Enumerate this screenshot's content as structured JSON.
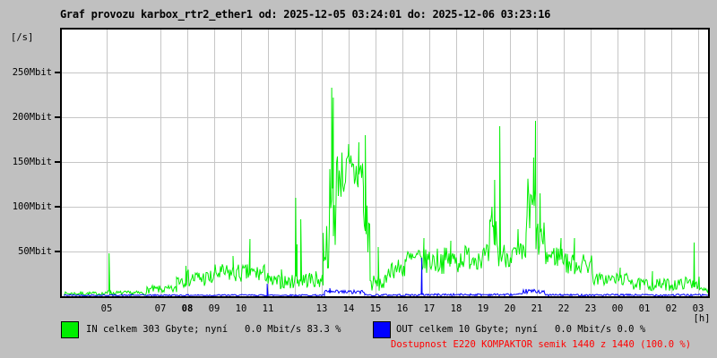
{
  "title": "Graf provozu karbox_rtr2_ether1 od: 2025-12-05 03:24:01 do: 2025-12-06 03:23:16",
  "colors": {
    "in_series": "#00ee00",
    "out_series": "#0000ff",
    "availability_text": "#ff0000",
    "background": "#c0c0c0",
    "plot_background": "#ffffff",
    "grid": "#c6c6c6",
    "axis": "#000000"
  },
  "y_axis": {
    "unit": "[/s]",
    "ticks": [
      {
        "v": 250,
        "label": "250Mbit"
      },
      {
        "v": 200,
        "label": "200Mbit"
      },
      {
        "v": 150,
        "label": "150Mbit"
      },
      {
        "v": 100,
        "label": "100Mbit"
      },
      {
        "v": 50,
        "label": "50Mbit"
      }
    ]
  },
  "x_axis": {
    "unit": "[h]",
    "ticks": [
      {
        "h": 5,
        "label": "05"
      },
      {
        "h": 7,
        "label": "07"
      },
      {
        "h": 8,
        "label": "08",
        "bold": true
      },
      {
        "h": 9,
        "label": "09"
      },
      {
        "h": 10,
        "label": "10"
      },
      {
        "h": 11,
        "label": "11"
      },
      {
        "h": 12,
        "label": ""
      },
      {
        "h": 13,
        "label": "13"
      },
      {
        "h": 14,
        "label": "14"
      },
      {
        "h": 15,
        "label": "15"
      },
      {
        "h": 16,
        "label": "16"
      },
      {
        "h": 17,
        "label": "17"
      },
      {
        "h": 18,
        "label": "18"
      },
      {
        "h": 19,
        "label": "19"
      },
      {
        "h": 20,
        "label": "20"
      },
      {
        "h": 21,
        "label": "21"
      },
      {
        "h": 22,
        "label": "22"
      },
      {
        "h": 23,
        "label": "23"
      },
      {
        "h": 24,
        "label": "00"
      },
      {
        "h": 25,
        "label": "01"
      },
      {
        "h": 26,
        "label": "02"
      },
      {
        "h": 27,
        "label": "03"
      }
    ]
  },
  "legend": {
    "in_label": "IN celkem 303 Gbyte; nyní   0.0 Mbit/s 83.3 %",
    "out_label": "OUT celkem 10 Gbyte; nyní   0.0 Mbit/s 0.0 %"
  },
  "availability": "Dostupnost E220 KOMPAKTOR semik 1440 z 1440 (100.0 %)",
  "chart_data": {
    "type": "line",
    "title": "Graf provozu karbox_rtr2_ether1 od: 2025-12-05 03:24:01 do: 2025-12-06 03:23:16",
    "xlabel": "[h]",
    "ylabel": "[/s] (Mbit/s)",
    "x_range_hours": [
      3.4,
      27.39
    ],
    "ylim": [
      0,
      298
    ],
    "grid": true,
    "legend_position": "bottom",
    "note": "24h traffic graph 03:24 day1 to 03:23 day2; series described as noisy bands [startHour,endHour,minMbit,maxMbit] plus discrete spikes [hour,Mbit]",
    "series": [
      {
        "name": "IN",
        "color": "#00ee00",
        "bands": [
          [
            3.4,
            5.05,
            1,
            5
          ],
          [
            5.05,
            5.12,
            4,
            10
          ],
          [
            5.12,
            6.5,
            1,
            6
          ],
          [
            6.5,
            7.6,
            3,
            12
          ],
          [
            7.6,
            9.0,
            10,
            30
          ],
          [
            9.0,
            11.0,
            15,
            36
          ],
          [
            11.0,
            11.95,
            8,
            24
          ],
          [
            11.95,
            13.05,
            9,
            28
          ],
          [
            13.05,
            13.3,
            30,
            85
          ],
          [
            13.3,
            13.55,
            50,
            150
          ],
          [
            13.55,
            14.55,
            108,
            165
          ],
          [
            14.55,
            14.8,
            40,
            115
          ],
          [
            14.8,
            15.45,
            5,
            24
          ],
          [
            15.45,
            16.1,
            20,
            42
          ],
          [
            16.1,
            18.2,
            25,
            55
          ],
          [
            18.2,
            19.25,
            30,
            58
          ],
          [
            19.25,
            19.55,
            40,
            95
          ],
          [
            19.55,
            20.6,
            32,
            60
          ],
          [
            20.6,
            21.0,
            45,
            135
          ],
          [
            21.0,
            21.3,
            38,
            85
          ],
          [
            21.3,
            22.1,
            32,
            58
          ],
          [
            22.1,
            23.1,
            24,
            48
          ],
          [
            23.1,
            24.6,
            12,
            26
          ],
          [
            24.6,
            26.4,
            6,
            20
          ],
          [
            26.4,
            27.05,
            8,
            22
          ],
          [
            27.05,
            27.39,
            4,
            10
          ]
        ],
        "spikes": [
          [
            5.09,
            48
          ],
          [
            7.95,
            34
          ],
          [
            9.7,
            45
          ],
          [
            10.33,
            64
          ],
          [
            11.5,
            30
          ],
          [
            12.03,
            110
          ],
          [
            12.08,
            58
          ],
          [
            12.22,
            86
          ],
          [
            13.37,
            233
          ],
          [
            13.43,
            222
          ],
          [
            14.0,
            170
          ],
          [
            14.38,
            172
          ],
          [
            14.62,
            180
          ],
          [
            15.1,
            55
          ],
          [
            16.8,
            65
          ],
          [
            17.8,
            62
          ],
          [
            19.33,
            100
          ],
          [
            19.43,
            130
          ],
          [
            19.62,
            190
          ],
          [
            20.3,
            75
          ],
          [
            20.88,
            155
          ],
          [
            20.95,
            196
          ],
          [
            21.12,
            115
          ],
          [
            21.9,
            65
          ],
          [
            22.4,
            65
          ],
          [
            24.1,
            32
          ],
          [
            25.3,
            28
          ],
          [
            26.85,
            60
          ]
        ]
      },
      {
        "name": "OUT",
        "color": "#0000ff",
        "bands": [
          [
            3.4,
            13.1,
            0.3,
            2
          ],
          [
            13.1,
            14.6,
            2,
            7
          ],
          [
            14.6,
            16.7,
            0.3,
            2.5
          ],
          [
            16.7,
            20.5,
            0.5,
            3
          ],
          [
            20.5,
            21.3,
            3,
            8
          ],
          [
            21.3,
            27.39,
            0.3,
            2.5
          ]
        ],
        "spikes": [
          [
            10.97,
            14
          ],
          [
            13.3,
            9
          ],
          [
            16.72,
            43
          ]
        ]
      }
    ]
  }
}
